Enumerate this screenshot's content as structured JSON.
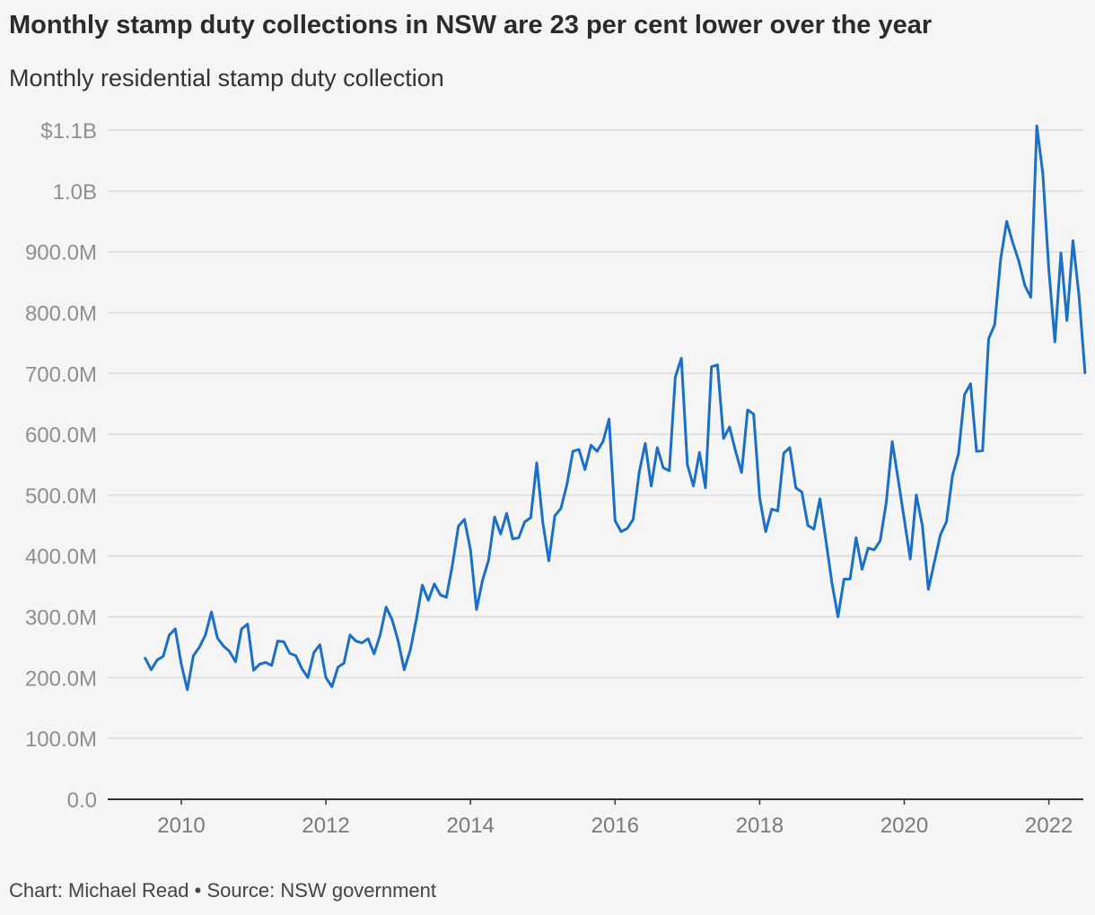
{
  "title": "Monthly stamp duty collections in NSW are 23 per cent lower over the year",
  "subtitle": "Monthly residential stamp duty collection",
  "footer": "Chart: Michael Read • Source: NSW government",
  "colors": {
    "line": "#1a6fc7",
    "grid": "#dcdcdc",
    "axis": "#333333",
    "background": "#f5f5f5"
  },
  "chart_data": {
    "type": "line",
    "title": "Monthly stamp duty collections in NSW are 23 per cent lower over the year",
    "subtitle": "Monthly residential stamp duty collection",
    "x_start": "2009-07",
    "x_step": "month",
    "ylim": [
      0,
      1100000000
    ],
    "y_ticks": [
      0,
      100000000,
      200000000,
      300000000,
      400000000,
      500000000,
      600000000,
      700000000,
      800000000,
      900000000,
      1000000000,
      1100000000
    ],
    "y_tick_labels": [
      "0.0",
      "100.0M",
      "200.0M",
      "300.0M",
      "400.0M",
      "500.0M",
      "600.0M",
      "700.0M",
      "800.0M",
      "900.0M",
      "1.0B",
      "$1.1B"
    ],
    "x_ticks": [
      2010,
      2012,
      2014,
      2016,
      2018,
      2020,
      2022
    ],
    "x_tick_labels": [
      "2010",
      "2012",
      "2014",
      "2016",
      "2018",
      "2020",
      "2022"
    ],
    "grid": true,
    "legend": "none",
    "values_millions": [
      232,
      213,
      229,
      235,
      270,
      280,
      222,
      180,
      236,
      250,
      270,
      308,
      265,
      252,
      243,
      226,
      280,
      288,
      212,
      222,
      225,
      220,
      260,
      259,
      240,
      236,
      215,
      200,
      241,
      254,
      200,
      185,
      217,
      224,
      270,
      260,
      257,
      264,
      239,
      270,
      316,
      295,
      260,
      213,
      245,
      295,
      352,
      327,
      354,
      336,
      332,
      385,
      449,
      460,
      410,
      312,
      360,
      393,
      464,
      436,
      470,
      428,
      430,
      456,
      463,
      553,
      455,
      392,
      466,
      478,
      517,
      572,
      575,
      542,
      582,
      572,
      588,
      625,
      458,
      440,
      445,
      460,
      537,
      585,
      515,
      578,
      545,
      540,
      694,
      725,
      550,
      515,
      570,
      512,
      711,
      714,
      593,
      612,
      572,
      537,
      640,
      633,
      495,
      440,
      477,
      474,
      569,
      578,
      512,
      505,
      450,
      444,
      494,
      425,
      355,
      300,
      362,
      362,
      430,
      378,
      413,
      410,
      425,
      487,
      588,
      525,
      460,
      395,
      500,
      450,
      345,
      390,
      435,
      456,
      532,
      568,
      665,
      683,
      572,
      573,
      757,
      780,
      888,
      950,
      915,
      885,
      845,
      825,
      1107,
      1028,
      870,
      752,
      898,
      787,
      918,
      828,
      701
    ]
  }
}
